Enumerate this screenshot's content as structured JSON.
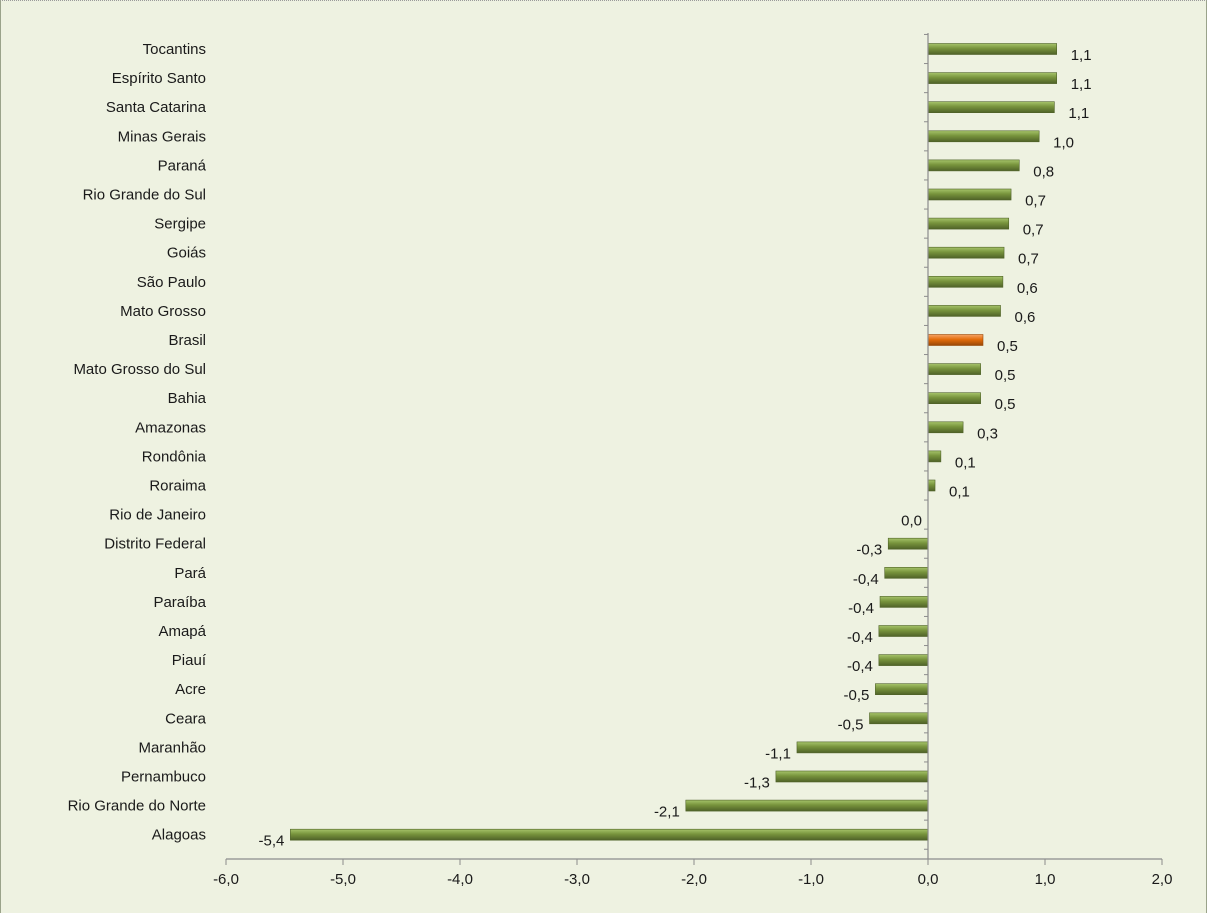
{
  "chart_data": {
    "type": "bar",
    "orientation": "horizontal",
    "categories": [
      "Tocantins",
      "Espírito Santo",
      "Santa Catarina",
      "Minas Gerais",
      "Paraná",
      "Rio Grande do Sul",
      "Sergipe",
      "Goiás",
      "São Paulo",
      "Mato Grosso",
      "Brasil",
      "Mato Grosso do Sul",
      "Bahia",
      "Amazonas",
      "Rondônia",
      "Roraima",
      "Rio de Janeiro",
      "Distrito Federal",
      "Pará",
      "Paraíba",
      "Amapá",
      "Piauí",
      "Acre",
      "Ceara",
      "Maranhão",
      "Pernambuco",
      "Rio Grande do Norte",
      "Alagoas"
    ],
    "values": [
      1.1,
      1.1,
      1.08,
      0.95,
      0.78,
      0.71,
      0.69,
      0.65,
      0.64,
      0.62,
      0.47,
      0.45,
      0.45,
      0.3,
      0.11,
      0.06,
      0.0,
      -0.34,
      -0.37,
      -0.41,
      -0.42,
      -0.42,
      -0.45,
      -0.5,
      -1.12,
      -1.3,
      -2.07,
      -5.45
    ],
    "value_labels": [
      "1,1",
      "1,1",
      "1,1",
      "1,0",
      "0,8",
      "0,7",
      "0,7",
      "0,7",
      "0,6",
      "0,6",
      "0,5",
      "0,5",
      "0,5",
      "0,3",
      "0,1",
      "0,1",
      "0,0",
      "-0,3",
      "-0,4",
      "-0,4",
      "-0,4",
      "-0,4",
      "-0,5",
      "-0,5",
      "-1,1",
      "-1,3",
      "-2,1",
      "-5,4"
    ],
    "highlight_category": "Brasil",
    "xlim": [
      -6.0,
      2.0
    ],
    "x_ticks": [
      -6,
      -5,
      -4,
      -3,
      -2,
      -1,
      0,
      1,
      2
    ],
    "x_tick_labels": [
      "-6,0",
      "-5,0",
      "-4,0",
      "-3,0",
      "-2,0",
      "-1,0",
      "0,0",
      "1,0",
      "2,0"
    ],
    "title": "",
    "xlabel": "",
    "ylabel": "",
    "grid": false,
    "legend": "none",
    "colors": {
      "bar": "#77933c",
      "bar_light": "#a6c46a",
      "bar_dark": "#4f6228",
      "highlight": "#e46c0a",
      "highlight_light": "#f5a468",
      "highlight_dark": "#984807",
      "background": "#eef2e1",
      "axis": "#8c8c8c"
    }
  }
}
